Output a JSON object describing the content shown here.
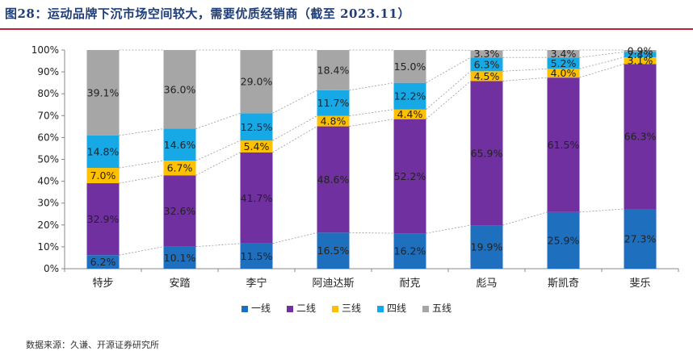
{
  "title": "图28：运动品牌下沉市场空间较大，需要优质经销商（截至 2023.11）",
  "source": "数据来源：久谦、开源证券研究所",
  "chart_data": {
    "type": "bar",
    "stacked": true,
    "categories": [
      "特步",
      "安踏",
      "李宁",
      "阿迪达斯",
      "耐克",
      "彪马",
      "斯凯奇",
      "斐乐"
    ],
    "yticks": [
      "0%",
      "10%",
      "20%",
      "30%",
      "40%",
      "50%",
      "60%",
      "70%",
      "80%",
      "90%",
      "100%"
    ],
    "ylim": [
      0,
      100
    ],
    "series": [
      {
        "name": "一线",
        "color": "#1f6fbf",
        "values": [
          6.2,
          10.1,
          11.5,
          16.5,
          16.2,
          19.9,
          25.9,
          27.3
        ],
        "labels": [
          "6.2%",
          "10.1%",
          "11.5%",
          "16.5%",
          "16.2%",
          "19.9%",
          "25.9%",
          "27.3%"
        ]
      },
      {
        "name": "二线",
        "color": "#7030a0",
        "values": [
          32.9,
          32.6,
          41.7,
          48.6,
          52.2,
          65.9,
          61.5,
          66.3
        ],
        "labels": [
          "32.9%",
          "32.6%",
          "41.7%",
          "48.6%",
          "52.2%",
          "65.9%",
          "61.5%",
          "66.3%"
        ]
      },
      {
        "name": "三线",
        "color": "#ffc000",
        "values": [
          7.0,
          6.7,
          5.4,
          4.8,
          4.4,
          4.5,
          4.0,
          3.1
        ],
        "labels": [
          "7.0%",
          "6.7%",
          "5.4%",
          "4.8%",
          "4.4%",
          "4.5%",
          "4.0%",
          "3.1%"
        ]
      },
      {
        "name": "四线",
        "color": "#17a8e6",
        "values": [
          14.8,
          14.6,
          12.5,
          11.7,
          12.2,
          6.3,
          5.2,
          2.4
        ],
        "labels": [
          "14.8%",
          "14.6%",
          "12.5%",
          "11.7%",
          "12.2%",
          "6.3%",
          "5.2%",
          "2.4%"
        ]
      },
      {
        "name": "五线",
        "color": "#a6a6a6",
        "values": [
          39.1,
          36.0,
          29.0,
          18.4,
          15.0,
          3.3,
          3.4,
          0.9
        ],
        "labels": [
          "39.1%",
          "36.0%",
          "29.0%",
          "18.4%",
          "15.0%",
          "3.3%",
          "3.4%",
          "0.9%"
        ]
      }
    ],
    "grid": false,
    "series_lines": true,
    "legend_position": "bottom"
  }
}
